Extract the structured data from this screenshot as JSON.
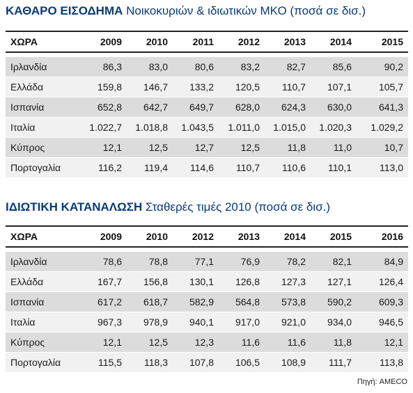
{
  "chart_data": [
    {
      "type": "table",
      "title": "ΚΑΘΑΡΟ ΕΙΣΟΔΗΜΑ",
      "subtitle": "Νοικοκυριών & ιδιωτικών ΜΚΟ (ποσά σε δισ.)",
      "columns": [
        "ΧΩΡΑ",
        "2009",
        "2010",
        "2011",
        "2012",
        "2013",
        "2014",
        "2015"
      ],
      "rows": [
        {
          "country": "Ιρλανδία",
          "values": [
            "86,3",
            "83,0",
            "80,6",
            "83,2",
            "82,7",
            "85,6",
            "90,2"
          ]
        },
        {
          "country": "Ελλάδα",
          "values": [
            "159,8",
            "146,7",
            "133,2",
            "120,5",
            "110,7",
            "107,1",
            "105,7"
          ]
        },
        {
          "country": "Ισπανία",
          "values": [
            "652,8",
            "642,7",
            "649,7",
            "628,0",
            "624,3",
            "630,0",
            "641,3"
          ]
        },
        {
          "country": "Ιταλία",
          "values": [
            "1.022,7",
            "1.018,8",
            "1.043,5",
            "1.011,0",
            "1.015,0",
            "1.020,3",
            "1.029,2"
          ]
        },
        {
          "country": "Κύπρος",
          "values": [
            "12,1",
            "12,5",
            "12,7",
            "12,5",
            "11,8",
            "11,0",
            "10,7"
          ]
        },
        {
          "country": "Πορτογαλία",
          "values": [
            "116,2",
            "119,4",
            "114,6",
            "110,7",
            "110,6",
            "110,1",
            "113,0"
          ]
        }
      ]
    },
    {
      "type": "table",
      "title": "ΙΔΙΩΤΙΚΗ ΚΑΤΑΝΑΛΩΣΗ",
      "subtitle": "Σταθερές τιμές 2010 (ποσά σε δισ.)",
      "columns": [
        "ΧΩΡΑ",
        "2009",
        "2010",
        "2012",
        "2013",
        "2014",
        "2015",
        "2016"
      ],
      "rows": [
        {
          "country": "Ιρλανδία",
          "values": [
            "78,6",
            "78,8",
            "77,1",
            "76,9",
            "78,2",
            "82,1",
            "84,9"
          ]
        },
        {
          "country": "Ελλάδα",
          "values": [
            "167,7",
            "156,8",
            "130,1",
            "126,8",
            "127,3",
            "127,1",
            "126,4"
          ]
        },
        {
          "country": "Ισπανία",
          "values": [
            "617,2",
            "618,7",
            "582,9",
            "564,8",
            "573,8",
            "590,2",
            "609,3"
          ]
        },
        {
          "country": "Ιταλία",
          "values": [
            "967,3",
            "978,9",
            "940,1",
            "917,0",
            "921,0",
            "934,0",
            "946,5"
          ]
        },
        {
          "country": "Κύπρος",
          "values": [
            "12,1",
            "12,5",
            "12,3",
            "11,6",
            "11,6",
            "11,8",
            "12,1"
          ]
        },
        {
          "country": "Πορτογαλία",
          "values": [
            "115,5",
            "118,3",
            "107,8",
            "106,5",
            "108,9",
            "111,7",
            "113,8"
          ]
        }
      ]
    }
  ],
  "source": "Πηγή: AMECO"
}
